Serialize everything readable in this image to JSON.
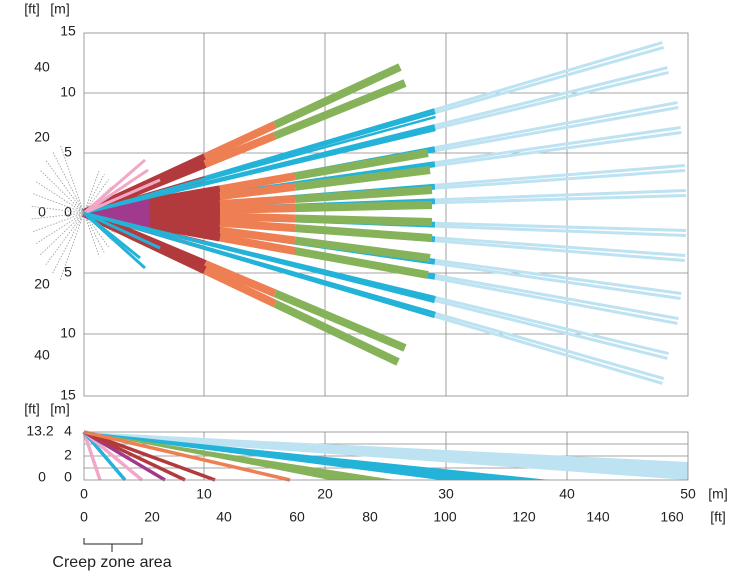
{
  "top_view": {
    "unit_ft": "[ft]",
    "unit_m": "[m]",
    "ft_labels": [
      "40",
      "20",
      "0",
      "20",
      "40"
    ],
    "m_labels": [
      "15",
      "10",
      "5",
      "0",
      "5",
      "10",
      "15"
    ]
  },
  "side_view": {
    "unit_ft": "[ft]",
    "unit_m": "[m]",
    "ft_labels": [
      "13.2",
      "0"
    ],
    "m_labels": [
      "4",
      "2",
      "0"
    ]
  },
  "x_axis": {
    "m_labels": [
      "0",
      "10",
      "20",
      "30",
      "40",
      "50"
    ],
    "m_unit": "[m]",
    "ft_labels": [
      "0",
      "20",
      "40",
      "60",
      "80",
      "100",
      "120",
      "140",
      "160"
    ],
    "ft_unit": "[ft]"
  },
  "creep_zone": "Creep zone area"
}
